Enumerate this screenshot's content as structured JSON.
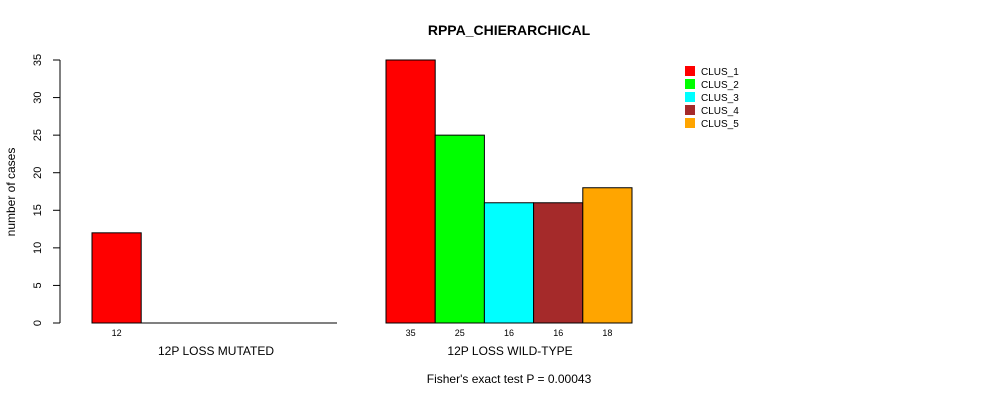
{
  "chart_data": {
    "type": "bar",
    "title": "RPPA_CHIERARCHICAL",
    "ylabel": "number of cases",
    "ylim": [
      0,
      35
    ],
    "yticks": [
      0,
      5,
      10,
      15,
      20,
      25,
      30,
      35
    ],
    "groups": [
      {
        "name": "12P LOSS MUTATED",
        "values": [
          12,
          0,
          0,
          0,
          0
        ],
        "labels": [
          "12",
          "",
          "",
          "",
          ""
        ]
      },
      {
        "name": "12P LOSS WILD-TYPE",
        "values": [
          35,
          25,
          16,
          16,
          18
        ],
        "labels": [
          "35",
          "25",
          "16",
          "16",
          "18"
        ]
      }
    ],
    "series": [
      {
        "name": "CLUS_1",
        "color": "#ff0000"
      },
      {
        "name": "CLUS_2",
        "color": "#00ff00"
      },
      {
        "name": "CLUS_3",
        "color": "#00ffff"
      },
      {
        "name": "CLUS_4",
        "color": "#a52a2a"
      },
      {
        "name": "CLUS_5",
        "color": "#ffa500"
      }
    ],
    "legend_position": "top-right",
    "footnote": "Fisher's exact test P = 0.00043"
  }
}
